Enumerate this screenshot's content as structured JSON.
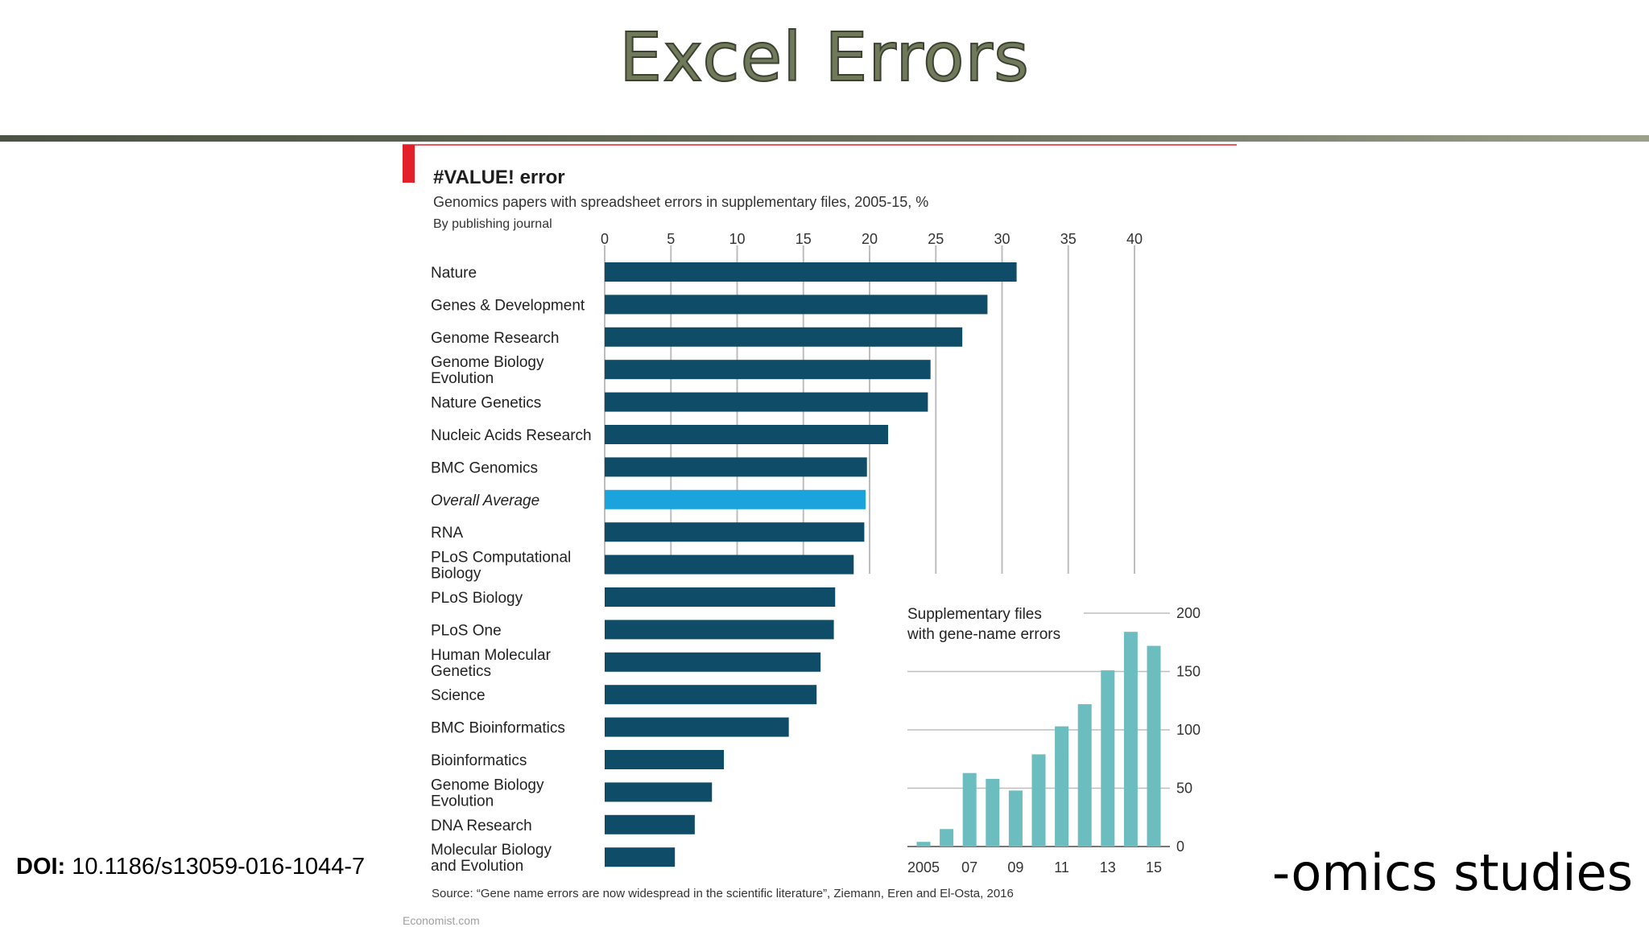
{
  "slide": {
    "title": "Excel Errors",
    "doi_label": "DOI:",
    "doi_value": "10.1186/s13059-016-1044-7",
    "footer_right": "-omics studies"
  },
  "colors": {
    "bar": "#0f4c68",
    "average_bar": "#1aa3dd",
    "inset_bar": "#6cbdbf",
    "accent_red": "#e3202a",
    "grid": "#bdbdbd"
  },
  "chart_data": [
    {
      "type": "bar",
      "orientation": "horizontal",
      "title": "#VALUE! error",
      "subtitle": "Genomics papers with spreadsheet errors in supplementary files, 2005-15, %",
      "subtitle2": "By publishing journal",
      "categories": [
        "Nature",
        "Genes & Development",
        "Genome Research",
        "Genome Biology\nEvolution",
        "Nature Genetics",
        "Nucleic Acids Research",
        "BMC Genomics",
        "Overall Average",
        "RNA",
        "PLoS Computational\nBiology",
        "PLoS Biology",
        "PLoS One",
        "Human Molecular\nGenetics",
        "Science",
        "BMC Bioinformatics",
        "Bioinformatics",
        "Genome Biology\nEvolution",
        "DNA Research",
        "Molecular Biology\nand Evolution"
      ],
      "values": [
        31.1,
        28.9,
        27.0,
        24.6,
        24.4,
        21.4,
        19.8,
        19.7,
        19.6,
        18.8,
        17.4,
        17.3,
        16.3,
        16.0,
        13.9,
        9.0,
        8.1,
        6.8,
        5.3
      ],
      "highlight_index": 7,
      "xticks": [
        0,
        5,
        10,
        15,
        20,
        25,
        30,
        35,
        40
      ],
      "xlim": [
        0,
        40
      ],
      "grid": true,
      "source": "Source: “Gene name errors are now widespread in the scientific literature”, Ziemann, Eren and El-Osta, 2016",
      "credit": "Economist.com"
    },
    {
      "type": "bar",
      "title_line1": "Supplementary files",
      "title_line2": "with gene-name errors",
      "categories": [
        "2005",
        "2006",
        "07",
        "08",
        "09",
        "10",
        "11",
        "12",
        "13",
        "14",
        "15"
      ],
      "values": [
        4,
        15,
        63,
        58,
        48,
        79,
        103,
        122,
        151,
        184,
        172
      ],
      "xtick_labels": [
        "2005",
        "07",
        "09",
        "11",
        "13",
        "15"
      ],
      "yticks": [
        0,
        50,
        100,
        150,
        200
      ],
      "ylim": [
        0,
        200
      ],
      "grid": true
    }
  ]
}
